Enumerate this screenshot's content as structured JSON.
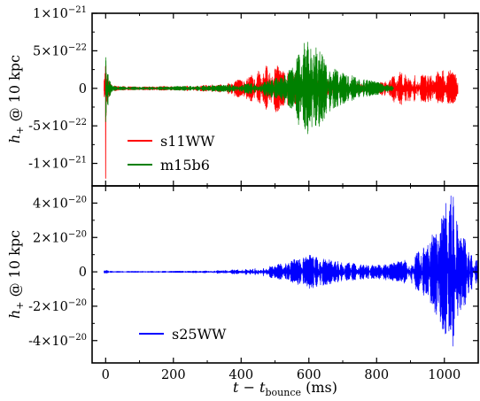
{
  "chart_data": [
    {
      "type": "line",
      "panel": "top",
      "xlabel_main": "t − t",
      "xlabel_sub": "bounce",
      "xlabel_unit": " (ms)",
      "ylabel_main": "h",
      "ylabel_sub": "+",
      "ylabel_rest": " @ 10 kpc",
      "xlim": [
        -40,
        1100
      ],
      "ylim": [
        -1.3e-21,
        1e-21
      ],
      "grid": false,
      "legend_position": "lower-left",
      "y_ticks": [
        {
          "value": 1e-21,
          "mant": "1",
          "exp": "−21"
        },
        {
          "value": 5e-22,
          "mant": "5",
          "exp": "−22"
        },
        {
          "value": 0,
          "mant": "0",
          "exp": ""
        },
        {
          "value": -5e-22,
          "mant": "-5",
          "exp": "−22"
        },
        {
          "value": -1e-21,
          "mant": "-1",
          "exp": "−21"
        }
      ],
      "series": [
        {
          "name": "s11WW",
          "color": "#ff0000",
          "x_range": [
            -5,
            1040
          ],
          "envelope_x": [
            -5,
            0,
            3,
            8,
            15,
            30,
            60,
            100,
            150,
            200,
            250,
            300,
            350,
            400,
            440,
            480,
            500,
            520,
            540,
            560,
            580,
            600,
            620,
            640,
            660,
            700,
            750,
            800,
            850,
            860,
            880,
            900,
            950,
            980,
            1000,
            1020,
            1040
          ],
          "envelope_y": [
            5e-23,
            8.5e-22,
            3e-22,
            1.5e-22,
            6e-23,
            3e-23,
            2.5e-23,
            2e-23,
            2.5e-23,
            3e-23,
            3.5e-23,
            4.5e-23,
            6e-23,
            1.3e-22,
            2e-22,
            3.2e-22,
            3.8e-22,
            3e-22,
            2.2e-22,
            2.2e-22,
            1.9e-22,
            1.3e-22,
            1.5e-22,
            1.3e-22,
            1.1e-22,
            8e-23,
            6e-23,
            5.5e-23,
            1.8e-22,
            2.2e-22,
            2.4e-22,
            2e-22,
            1.8e-22,
            2.3e-22,
            2.4e-22,
            2.5e-22,
            1.8e-22
          ],
          "envelope_neg_boost": [
            [
              0,
              1.2e-21
            ]
          ]
        },
        {
          "name": "m15b6",
          "color": "#008000",
          "x_range": [
            0,
            850
          ],
          "envelope_x": [
            0,
            3,
            8,
            15,
            30,
            60,
            100,
            150,
            200,
            300,
            400,
            450,
            500,
            520,
            540,
            560,
            580,
            600,
            620,
            640,
            660,
            700,
            750,
            800,
            850
          ],
          "envelope_y": [
            6e-22,
            5e-22,
            2e-22,
            8e-23,
            3e-23,
            2e-23,
            2e-23,
            2e-23,
            2.5e-23,
            3.5e-23,
            6e-23,
            8e-23,
            1.4e-22,
            1.6e-22,
            2.4e-22,
            4e-22,
            5.8e-22,
            6.8e-22,
            6.2e-22,
            4.5e-22,
            3.2e-22,
            2.2e-22,
            1.3e-22,
            9e-23,
            3e-23
          ]
        }
      ]
    },
    {
      "type": "line",
      "panel": "bottom",
      "xlabel_main": "t − t",
      "xlabel_sub": "bounce",
      "xlabel_unit": " (ms)",
      "ylabel_main": "h",
      "ylabel_sub": "+",
      "ylabel_rest": " @ 10 kpc",
      "xlim": [
        -40,
        1100
      ],
      "ylim": [
        -5.3e-20,
        5e-20
      ],
      "grid": false,
      "legend_position": "lower-left",
      "x_ticks": [
        0,
        200,
        400,
        600,
        800,
        1000
      ],
      "y_ticks": [
        {
          "value": 4e-20,
          "mant": "4",
          "exp": "−20"
        },
        {
          "value": 2e-20,
          "mant": "2",
          "exp": "−20"
        },
        {
          "value": 0,
          "mant": "0",
          "exp": ""
        },
        {
          "value": -2e-20,
          "mant": "-2",
          "exp": "−20"
        },
        {
          "value": -4e-20,
          "mant": "-4",
          "exp": "−20"
        }
      ],
      "series": [
        {
          "name": "s25WW",
          "color": "#0000ff",
          "x_range": [
            -5,
            1100
          ],
          "envelope_x": [
            -5,
            0,
            5,
            10,
            20,
            100,
            200,
            300,
            400,
            450,
            500,
            540,
            570,
            600,
            620,
            650,
            700,
            750,
            800,
            850,
            900,
            950,
            980,
            1000,
            1010,
            1020,
            1030,
            1045,
            1060,
            1080,
            1100
          ],
          "envelope_y": [
            5e-22,
            1.2e-21,
            8e-22,
            5e-22,
            3e-22,
            3e-22,
            4e-22,
            6e-22,
            1.5e-21,
            2.5e-21,
            4e-21,
            6e-21,
            8e-21,
            1e-20,
            9.5e-21,
            7.5e-21,
            6e-21,
            4.5e-21,
            4e-21,
            5.5e-21,
            8.5e-21,
            1.7e-20,
            2.8e-20,
            3.8e-20,
            4.3e-20,
            4.6e-20,
            4.4e-20,
            3.2e-20,
            2e-20,
            1.1e-20,
            7e-21
          ]
        }
      ]
    }
  ]
}
